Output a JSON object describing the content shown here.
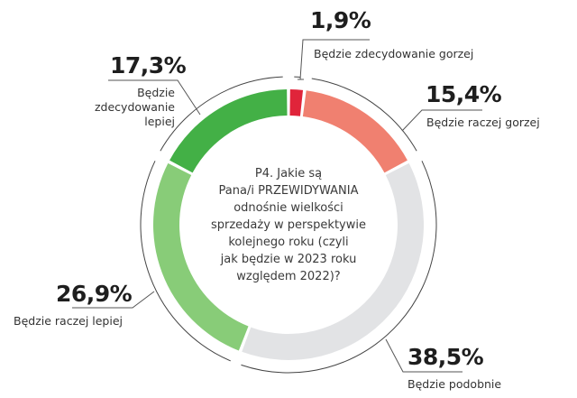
{
  "chart_data": {
    "type": "pie",
    "variant": "donut",
    "title": "P4. Jakie są Pana/i PRZEWIDYWANIA odnośnie wielkości sprzedaży w perspektywie kolejnego roku (czyli jak będzie w 2023 roku względem 2022)?",
    "unit": "%",
    "categories": [
      "Będzie zdecydowanie gorzej",
      "Będzie raczej gorzej",
      "Będzie podobnie",
      "Będzie raczej lepiej",
      "Będzie zdecydowanie lepiej"
    ],
    "values": [
      1.9,
      15.4,
      38.5,
      26.9,
      17.3
    ],
    "value_labels": [
      "1,9%",
      "15,4%",
      "38,5%",
      "26,9%",
      "17,3%"
    ],
    "colors": [
      "#e0243a",
      "#f08070",
      "#e2e3e5",
      "#88cc78",
      "#43b046"
    ],
    "start_angle_deg": 0,
    "direction": "clockwise",
    "legend": "none (direct labels with leader lines)"
  },
  "labels": {
    "s0": {
      "pct": "1,9%",
      "text": "Będzie zdecydowanie gorzej"
    },
    "s1": {
      "pct": "15,4%",
      "text": "Będzie raczej gorzej"
    },
    "s2": {
      "pct": "38,5%",
      "text": "Będzie podobnie"
    },
    "s3": {
      "pct": "26,9%",
      "text": "Będzie raczej lepiej"
    },
    "s4": {
      "pct": "17,3%",
      "text_lines": [
        "Będzie",
        "zdecydowanie",
        "lepiej"
      ]
    }
  },
  "center_question": {
    "lines": [
      "P4. Jakie są",
      "Pana/i PRZEWIDYWANIA",
      "odnośnie wielkości",
      "sprzedaży w perspektywie",
      "kolejnego roku (czyli",
      "jak będzie w 2023 roku",
      "względem 2022)?"
    ]
  }
}
